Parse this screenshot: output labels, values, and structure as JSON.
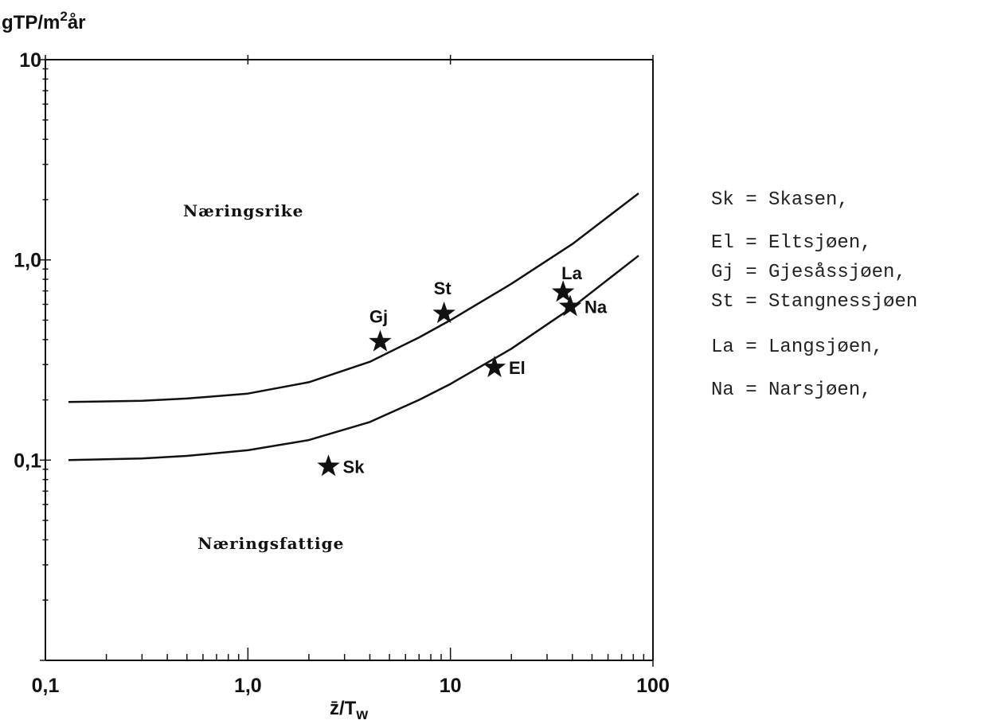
{
  "chart_data": {
    "type": "scatter",
    "title": "",
    "ylabel": "gTP/m²år",
    "ylabel_main": "gTP/m",
    "ylabel_sup": "2",
    "ylabel_suffix": "år",
    "xlabel": "z̄/Tw",
    "xlabel_main": "z̄/T",
    "xlabel_sub": "w",
    "x_scale": "log",
    "y_scale": "log",
    "xlim": [
      0.1,
      100
    ],
    "ylim": [
      0.01,
      10
    ],
    "x_tick_labels": [
      {
        "value": 0.1,
        "label": "0,1"
      },
      {
        "value": 1,
        "label": "1,0"
      },
      {
        "value": 10,
        "label": "10"
      },
      {
        "value": 100,
        "label": "100"
      }
    ],
    "y_tick_labels": [
      {
        "value": 10,
        "label": "10"
      },
      {
        "value": 1,
        "label": "1,0"
      },
      {
        "value": 0.1,
        "label": "0,1"
      }
    ],
    "grid": false,
    "curves": [
      {
        "x": [
          0.13,
          0.3,
          0.5,
          1.0,
          2.0,
          4.0,
          7.0,
          10.0,
          20.0,
          40.0,
          85.0
        ],
        "y": [
          0.195,
          0.198,
          0.203,
          0.215,
          0.245,
          0.31,
          0.41,
          0.5,
          0.76,
          1.2,
          2.15
        ]
      },
      {
        "x": [
          0.13,
          0.3,
          0.5,
          1.0,
          2.0,
          4.0,
          7.0,
          10.0,
          20.0,
          40.0,
          85.0
        ],
        "y": [
          0.1,
          0.102,
          0.105,
          0.112,
          0.126,
          0.155,
          0.2,
          0.24,
          0.36,
          0.58,
          1.05
        ]
      }
    ],
    "points": [
      {
        "label": "Sk",
        "x": 2.5,
        "y": 0.093,
        "label_pos": "right"
      },
      {
        "label": "Gj",
        "x": 4.5,
        "y": 0.39,
        "label_pos": "top"
      },
      {
        "label": "St",
        "x": 9.3,
        "y": 0.54,
        "label_pos": "top"
      },
      {
        "label": "El",
        "x": 16.5,
        "y": 0.29,
        "label_pos": "right"
      },
      {
        "label": "La",
        "x": 36.0,
        "y": 0.69,
        "label_pos": "top-right"
      },
      {
        "label": "Na",
        "x": 39.0,
        "y": 0.585,
        "label_pos": "right"
      }
    ],
    "annotations": [
      {
        "text": "Næringsrike",
        "x": 0.95,
        "y": 1.65
      },
      {
        "text": "Næringsfattige",
        "x": 1.3,
        "y": 0.036
      }
    ]
  },
  "legend": [
    "Sk = Skasen,",
    "El = Eltsjøen,",
    "Gj = Gjesåssjøen,",
    "St = Stangnessjøen",
    "La = Langsjøen,",
    "Na = Narsjøen,"
  ]
}
